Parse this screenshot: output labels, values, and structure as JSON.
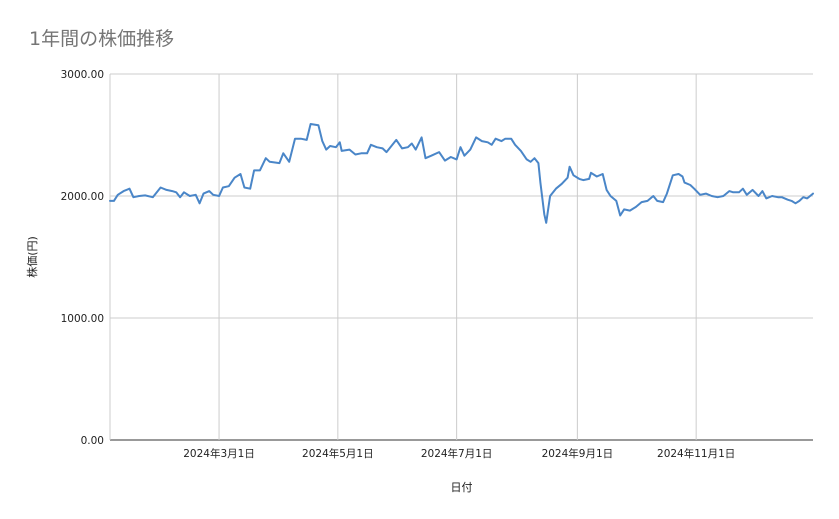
{
  "chart_data": {
    "type": "line",
    "title": "1年間の株価推移",
    "xlabel": "日付",
    "ylabel": "株価(円)",
    "ylim": [
      0,
      3000
    ],
    "yticks": [
      {
        "value": 0,
        "label": "0.00"
      },
      {
        "value": 1000,
        "label": "1000.00"
      },
      {
        "value": 2000,
        "label": "2000.00"
      },
      {
        "value": 3000,
        "label": "3000.00"
      }
    ],
    "xlim": [
      "2024-01-05",
      "2024-12-31"
    ],
    "xticks": [
      {
        "date": "2024-03-01",
        "label": "2024年3月1日"
      },
      {
        "date": "2024-05-01",
        "label": "2024年5月1日"
      },
      {
        "date": "2024-07-01",
        "label": "2024年7月1日"
      },
      {
        "date": "2024-09-01",
        "label": "2024年9月1日"
      },
      {
        "date": "2024-11-01",
        "label": "2024年11月1日"
      }
    ],
    "grid": true,
    "line_color": "#4a86c8",
    "series": [
      {
        "points": [
          [
            "2024-01-05",
            1960
          ],
          [
            "2024-01-07",
            1960
          ],
          [
            "2024-01-09",
            2010
          ],
          [
            "2024-01-12",
            2040
          ],
          [
            "2024-01-15",
            2060
          ],
          [
            "2024-01-17",
            1990
          ],
          [
            "2024-01-20",
            2000
          ],
          [
            "2024-01-23",
            2005
          ],
          [
            "2024-01-27",
            1990
          ],
          [
            "2024-01-31",
            2070
          ],
          [
            "2024-02-03",
            2050
          ],
          [
            "2024-02-06",
            2040
          ],
          [
            "2024-02-08",
            2030
          ],
          [
            "2024-02-10",
            1990
          ],
          [
            "2024-02-12",
            2030
          ],
          [
            "2024-02-15",
            2000
          ],
          [
            "2024-02-18",
            2010
          ],
          [
            "2024-02-20",
            1940
          ],
          [
            "2024-02-22",
            2020
          ],
          [
            "2024-02-25",
            2040
          ],
          [
            "2024-02-27",
            2010
          ],
          [
            "2024-03-01",
            2000
          ],
          [
            "2024-03-03",
            2070
          ],
          [
            "2024-03-06",
            2080
          ],
          [
            "2024-03-09",
            2150
          ],
          [
            "2024-03-12",
            2180
          ],
          [
            "2024-03-14",
            2070
          ],
          [
            "2024-03-17",
            2060
          ],
          [
            "2024-03-19",
            2210
          ],
          [
            "2024-03-22",
            2210
          ],
          [
            "2024-03-25",
            2310
          ],
          [
            "2024-03-27",
            2280
          ],
          [
            "2024-04-01",
            2270
          ],
          [
            "2024-04-03",
            2350
          ],
          [
            "2024-04-06",
            2280
          ],
          [
            "2024-04-09",
            2470
          ],
          [
            "2024-04-12",
            2470
          ],
          [
            "2024-04-15",
            2460
          ],
          [
            "2024-04-17",
            2590
          ],
          [
            "2024-04-21",
            2580
          ],
          [
            "2024-04-23",
            2450
          ],
          [
            "2024-04-25",
            2380
          ],
          [
            "2024-04-27",
            2410
          ],
          [
            "2024-04-30",
            2400
          ],
          [
            "2024-05-02",
            2440
          ],
          [
            "2024-05-03",
            2370
          ],
          [
            "2024-05-07",
            2380
          ],
          [
            "2024-05-10",
            2340
          ],
          [
            "2024-05-13",
            2350
          ],
          [
            "2024-05-16",
            2350
          ],
          [
            "2024-05-18",
            2420
          ],
          [
            "2024-05-21",
            2400
          ],
          [
            "2024-05-24",
            2390
          ],
          [
            "2024-05-26",
            2360
          ],
          [
            "2024-05-28",
            2400
          ],
          [
            "2024-05-31",
            2460
          ],
          [
            "2024-06-03",
            2390
          ],
          [
            "2024-06-06",
            2400
          ],
          [
            "2024-06-08",
            2430
          ],
          [
            "2024-06-10",
            2380
          ],
          [
            "2024-06-13",
            2480
          ],
          [
            "2024-06-15",
            2310
          ],
          [
            "2024-06-18",
            2330
          ],
          [
            "2024-06-22",
            2360
          ],
          [
            "2024-06-25",
            2290
          ],
          [
            "2024-06-28",
            2320
          ],
          [
            "2024-07-01",
            2300
          ],
          [
            "2024-07-03",
            2400
          ],
          [
            "2024-07-05",
            2330
          ],
          [
            "2024-07-08",
            2380
          ],
          [
            "2024-07-11",
            2480
          ],
          [
            "2024-07-14",
            2450
          ],
          [
            "2024-07-17",
            2440
          ],
          [
            "2024-07-19",
            2420
          ],
          [
            "2024-07-21",
            2470
          ],
          [
            "2024-07-24",
            2450
          ],
          [
            "2024-07-26",
            2470
          ],
          [
            "2024-07-29",
            2470
          ],
          [
            "2024-07-31",
            2420
          ],
          [
            "2024-08-03",
            2370
          ],
          [
            "2024-08-06",
            2300
          ],
          [
            "2024-08-08",
            2280
          ],
          [
            "2024-08-10",
            2310
          ],
          [
            "2024-08-12",
            2270
          ],
          [
            "2024-08-13",
            2110
          ],
          [
            "2024-08-15",
            1850
          ],
          [
            "2024-08-16",
            1780
          ],
          [
            "2024-08-18",
            2000
          ],
          [
            "2024-08-21",
            2060
          ],
          [
            "2024-08-24",
            2100
          ],
          [
            "2024-08-27",
            2150
          ],
          [
            "2024-08-28",
            2240
          ],
          [
            "2024-08-30",
            2170
          ],
          [
            "2024-09-02",
            2140
          ],
          [
            "2024-09-04",
            2130
          ],
          [
            "2024-09-07",
            2140
          ],
          [
            "2024-09-08",
            2190
          ],
          [
            "2024-09-11",
            2160
          ],
          [
            "2024-09-14",
            2180
          ],
          [
            "2024-09-16",
            2050
          ],
          [
            "2024-09-18",
            2000
          ],
          [
            "2024-09-21",
            1960
          ],
          [
            "2024-09-23",
            1840
          ],
          [
            "2024-09-25",
            1890
          ],
          [
            "2024-09-28",
            1880
          ],
          [
            "2024-10-01",
            1910
          ],
          [
            "2024-10-04",
            1950
          ],
          [
            "2024-10-07",
            1960
          ],
          [
            "2024-10-10",
            2000
          ],
          [
            "2024-10-12",
            1960
          ],
          [
            "2024-10-15",
            1950
          ],
          [
            "2024-10-17",
            2020
          ],
          [
            "2024-10-20",
            2170
          ],
          [
            "2024-10-23",
            2180
          ],
          [
            "2024-10-25",
            2160
          ],
          [
            "2024-10-26",
            2110
          ],
          [
            "2024-10-29",
            2090
          ],
          [
            "2024-10-31",
            2060
          ],
          [
            "2024-11-03",
            2010
          ],
          [
            "2024-11-06",
            2020
          ],
          [
            "2024-11-09",
            2000
          ],
          [
            "2024-11-12",
            1990
          ],
          [
            "2024-11-15",
            2000
          ],
          [
            "2024-11-18",
            2040
          ],
          [
            "2024-11-20",
            2030
          ],
          [
            "2024-11-23",
            2030
          ],
          [
            "2024-11-25",
            2060
          ],
          [
            "2024-11-27",
            2010
          ],
          [
            "2024-11-30",
            2050
          ],
          [
            "2024-12-03",
            2000
          ],
          [
            "2024-12-05",
            2040
          ],
          [
            "2024-12-07",
            1980
          ],
          [
            "2024-12-10",
            2000
          ],
          [
            "2024-12-13",
            1990
          ],
          [
            "2024-12-15",
            1990
          ],
          [
            "2024-12-18",
            1970
          ],
          [
            "2024-12-20",
            1960
          ],
          [
            "2024-12-22",
            1940
          ],
          [
            "2024-12-24",
            1960
          ],
          [
            "2024-12-26",
            1990
          ],
          [
            "2024-12-28",
            1980
          ],
          [
            "2024-12-31",
            2020
          ]
        ]
      }
    ]
  }
}
